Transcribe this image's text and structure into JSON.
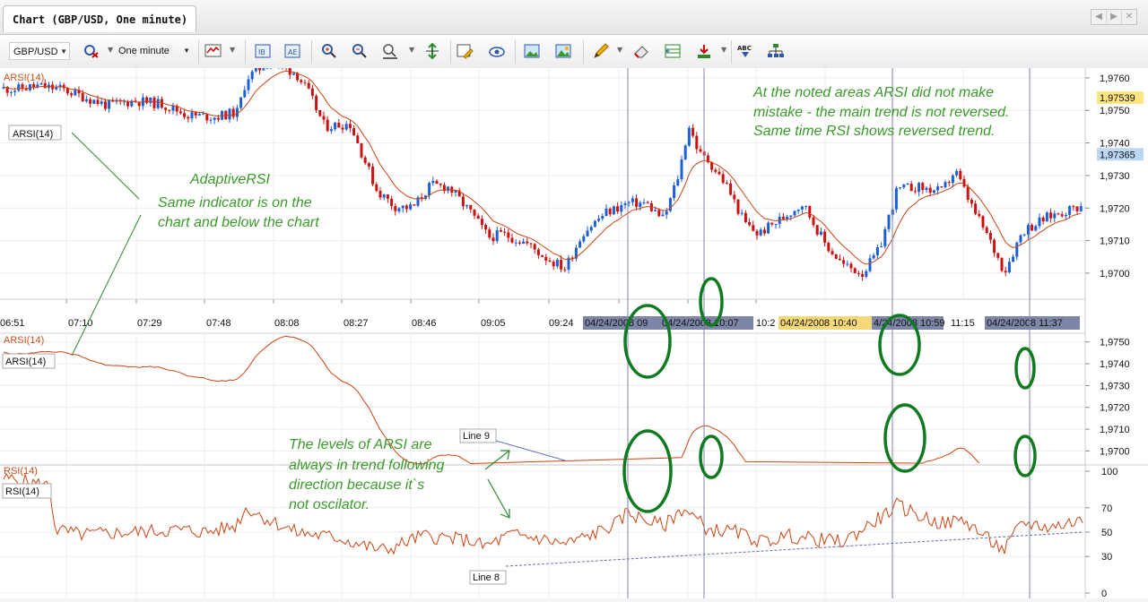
{
  "window": {
    "tab_title": "Chart (GBP/USD, One minute)",
    "controls": [
      "◀",
      "▶",
      "✕"
    ]
  },
  "toolbar": {
    "symbol": "GBP/USD",
    "period": "One minute",
    "buttons": [
      "chart-type",
      "indicators",
      "objects",
      "zoom-in",
      "zoom-out",
      "zoom-period",
      "autoscale",
      "template",
      "eye",
      "image-save",
      "image-open",
      "pen",
      "eraser",
      "grid",
      "colors",
      "abc",
      "tree"
    ]
  },
  "chart_data": [
    {
      "type": "candlestick",
      "title": "ARSI(14)",
      "labels": [
        "ARSI(14)",
        "ARSI(14)"
      ],
      "y_ticks": [
        "1,9760",
        "1,9750",
        "1,9740",
        "1,9730",
        "1,9720",
        "1,9710",
        "1,9700"
      ],
      "price_markers": [
        {
          "value": "1,97539",
          "color": "#ffe680"
        },
        {
          "value": "1,97365",
          "color": "#bcd6f5"
        }
      ],
      "x_ticks": [
        "06:51",
        "07:10",
        "07:29",
        "07:48",
        "08:08",
        "08:27",
        "08:46",
        "09:05",
        "09:24",
        "10:2",
        "11:15"
      ],
      "x_highlights": [
        {
          "text": "04/24/2008 09",
          "color": "#7d86a7"
        },
        {
          "text": "04/24/2008 10:07",
          "color": "#7d86a7"
        },
        {
          "text": "04/24/2008 10:40",
          "color": "#f5d87a"
        },
        {
          "text": "4/24/2008 10:59",
          "color": "#7d86a7"
        },
        {
          "text": "04/24/2008 11:37",
          "color": "#7d86a7"
        }
      ],
      "ylim": [
        1.9692,
        1.9763
      ],
      "annotations": [
        "At the noted areas ARSI did not make",
        "mistake - the main trend is not reversed.",
        "Same time RSI shows reversed trend.",
        "AdaptiveRSI",
        "Same indicator is on the",
        "chart and below the chart"
      ]
    },
    {
      "type": "line",
      "title": "ARSI(14)",
      "labels": [
        "ARSI(14)",
        "ARSI(14)",
        "Line 9"
      ],
      "y_ticks": [
        "1,9750",
        "1,9740",
        "1,9730",
        "1,9720",
        "1,9710",
        "1,9700"
      ],
      "ylim": [
        1.9694,
        1.9754
      ],
      "annotations": [
        "The levels of ARSI are",
        "always in trend following",
        "direction because it`s",
        "not oscilator."
      ]
    },
    {
      "type": "line",
      "title": "RSI(14)",
      "labels": [
        "RSI(14)",
        "RSI(14)",
        "Line 8"
      ],
      "y_ticks": [
        "100",
        "70",
        "50",
        "30",
        "0"
      ],
      "ylim": [
        0,
        100
      ]
    }
  ],
  "colors": {
    "up": "#1d5fd6",
    "down": "#cc1111",
    "line": "#cc4411",
    "note": "#3a9a2a",
    "ellipse": "#0f7a1f"
  }
}
